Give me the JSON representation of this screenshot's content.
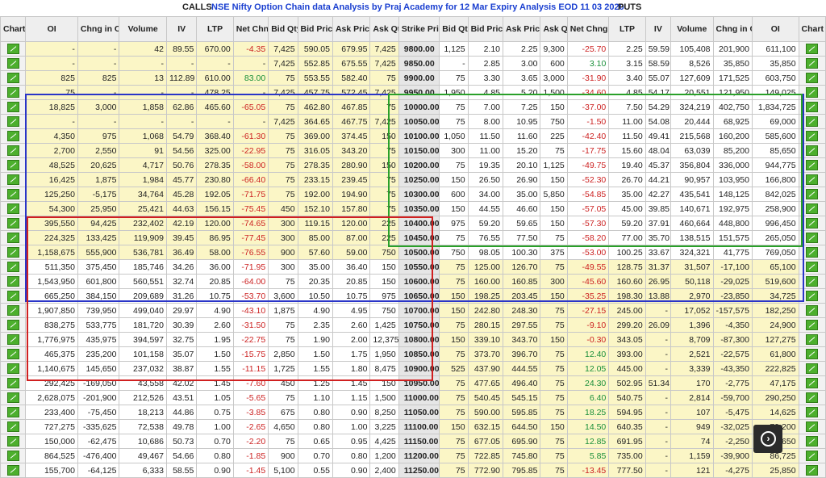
{
  "header": {
    "calls_label": "CALLS",
    "title": "NSE Nifty Option Chain data Analysis by Praj Academy for 12 Mar Expiry Analysis EOD 11 03 2020",
    "puts_label": "PUTS"
  },
  "columns": [
    "Chart",
    "OI",
    "Chng in OI",
    "Volume",
    "IV",
    "LTP",
    "Net Chng",
    "Bid Qty",
    "Bid Price",
    "Ask Price",
    "Ask Qty",
    "Strike Price",
    "Bid Qty",
    "Bid Price",
    "Ask Price",
    "Ask Qty",
    "Net Chng",
    "LTP",
    "IV",
    "Volume",
    "Chng in OI",
    "OI",
    "Chart"
  ],
  "colors": {
    "itm": "#fbf6c6",
    "otm": "#ffffff",
    "blue_box": "#2a35c8",
    "red_box": "#d02020",
    "green_box": "#2aa02a",
    "title": "#1a3fd0"
  },
  "icons": {
    "chart": "chart-icon",
    "next": "next-arrow-icon"
  },
  "rows": [
    [
      "-",
      "-",
      "42",
      "89.55",
      "670.00",
      "-4.35",
      "7,425",
      "590.05",
      "679.95",
      "7,425",
      "9800.00",
      "1,125",
      "2.10",
      "2.25",
      "9,300",
      "-25.70",
      "2.25",
      "59.59",
      "105,408",
      "201,900",
      "611,100"
    ],
    [
      "-",
      "-",
      "-",
      "-",
      "-",
      "-",
      "7,425",
      "552.85",
      "675.55",
      "7,425",
      "9850.00",
      "-",
      "2.85",
      "3.00",
      "600",
      "3.10",
      "3.15",
      "58.59",
      "8,526",
      "35,850",
      "35,850"
    ],
    [
      "825",
      "825",
      "13",
      "112.89",
      "610.00",
      "83.00",
      "75",
      "553.55",
      "582.40",
      "75",
      "9900.00",
      "75",
      "3.30",
      "3.65",
      "3,000",
      "-31.90",
      "3.40",
      "55.07",
      "127,609",
      "171,525",
      "603,750"
    ],
    [
      "75",
      "-",
      "-",
      "-",
      "478.25",
      "-",
      "7,425",
      "457.75",
      "572.45",
      "7,425",
      "9950.00",
      "1,950",
      "4.85",
      "5.20",
      "1,500",
      "-34.60",
      "4.85",
      "54.17",
      "20,551",
      "121,950",
      "149,025"
    ],
    [
      "18,825",
      "3,000",
      "1,858",
      "62.86",
      "465.60",
      "-65.05",
      "75",
      "462.80",
      "467.85",
      "75",
      "10000.00",
      "75",
      "7.00",
      "7.25",
      "150",
      "-37.00",
      "7.50",
      "54.29",
      "324,219",
      "402,750",
      "1,834,725"
    ],
    [
      "-",
      "-",
      "-",
      "-",
      "-",
      "-",
      "7,425",
      "364.65",
      "467.75",
      "7,425",
      "10050.00",
      "75",
      "8.00",
      "10.95",
      "750",
      "-1.50",
      "11.00",
      "54.08",
      "20,444",
      "68,925",
      "69,000"
    ],
    [
      "4,350",
      "975",
      "1,068",
      "54.79",
      "368.40",
      "-61.30",
      "75",
      "369.00",
      "374.45",
      "150",
      "10100.00",
      "1,050",
      "11.50",
      "11.60",
      "225",
      "-42.40",
      "11.50",
      "49.41",
      "215,568",
      "160,200",
      "585,600"
    ],
    [
      "2,700",
      "2,550",
      "91",
      "54.56",
      "325.00",
      "-22.95",
      "75",
      "316.05",
      "343.20",
      "75",
      "10150.00",
      "300",
      "11.00",
      "15.20",
      "75",
      "-17.75",
      "15.60",
      "48.04",
      "63,039",
      "85,200",
      "85,650"
    ],
    [
      "48,525",
      "20,625",
      "4,717",
      "50.76",
      "278.35",
      "-58.00",
      "75",
      "278.35",
      "280.90",
      "150",
      "10200.00",
      "75",
      "19.35",
      "20.10",
      "1,125",
      "-49.75",
      "19.40",
      "45.37",
      "356,804",
      "336,000",
      "944,775"
    ],
    [
      "16,425",
      "1,875",
      "1,984",
      "45.77",
      "230.80",
      "-66.40",
      "75",
      "233.15",
      "239.45",
      "75",
      "10250.00",
      "150",
      "26.50",
      "26.90",
      "150",
      "-52.30",
      "26.70",
      "44.21",
      "90,957",
      "103,950",
      "166,800"
    ],
    [
      "125,250",
      "-5,175",
      "34,764",
      "45.28",
      "192.05",
      "-71.75",
      "75",
      "192.00",
      "194.90",
      "75",
      "10300.00",
      "600",
      "34.00",
      "35.00",
      "5,850",
      "-54.85",
      "35.00",
      "42.27",
      "435,541",
      "148,125",
      "842,025"
    ],
    [
      "54,300",
      "25,950",
      "25,421",
      "44.63",
      "156.15",
      "-75.45",
      "450",
      "152.10",
      "157.80",
      "75",
      "10350.00",
      "150",
      "44.55",
      "46.60",
      "150",
      "-57.05",
      "45.00",
      "39.85",
      "140,671",
      "192,975",
      "258,900"
    ],
    [
      "395,550",
      "94,425",
      "232,402",
      "42.19",
      "120.00",
      "-74.65",
      "300",
      "119.15",
      "120.00",
      "225",
      "10400.00",
      "975",
      "59.20",
      "59.65",
      "150",
      "-57.30",
      "59.20",
      "37.91",
      "460,664",
      "448,800",
      "996,450"
    ],
    [
      "224,325",
      "133,425",
      "119,909",
      "39.45",
      "86.95",
      "-77.45",
      "300",
      "85.00",
      "87.00",
      "225",
      "10450.00",
      "75",
      "76.55",
      "77.50",
      "75",
      "-58.20",
      "77.00",
      "35.70",
      "138,515",
      "151,575",
      "265,050"
    ],
    [
      "1,158,675",
      "555,900",
      "536,781",
      "36.49",
      "58.00",
      "-76.55",
      "900",
      "57.60",
      "59.00",
      "750",
      "10500.00",
      "750",
      "98.05",
      "100.30",
      "375",
      "-53.00",
      "100.25",
      "33.67",
      "324,321",
      "41,775",
      "769,050"
    ],
    [
      "511,350",
      "375,450",
      "185,746",
      "34.26",
      "36.00",
      "-71.95",
      "300",
      "35.00",
      "36.40",
      "150",
      "10550.00",
      "75",
      "125.00",
      "126.70",
      "75",
      "-49.55",
      "128.75",
      "31.37",
      "31,507",
      "-17,100",
      "65,100"
    ],
    [
      "1,543,950",
      "601,800",
      "560,551",
      "32.74",
      "20.85",
      "-64.00",
      "75",
      "20.35",
      "20.85",
      "150",
      "10600.00",
      "75",
      "160.00",
      "160.85",
      "300",
      "-45.60",
      "160.60",
      "26.95",
      "50,118",
      "-29,025",
      "519,600"
    ],
    [
      "665,250",
      "384,150",
      "209,689",
      "31.26",
      "10.75",
      "-53.70",
      "3,600",
      "10.50",
      "10.75",
      "975",
      "10650.00",
      "150",
      "198.25",
      "203.45",
      "150",
      "-35.25",
      "198.30",
      "13.88",
      "2,970",
      "-23,850",
      "34,725"
    ],
    [
      "1,907,850",
      "739,950",
      "499,040",
      "29.97",
      "4.90",
      "-43.10",
      "1,875",
      "4.90",
      "4.95",
      "750",
      "10700.00",
      "150",
      "242.80",
      "248.30",
      "75",
      "-27.15",
      "245.00",
      "-",
      "17,052",
      "-157,575",
      "182,250"
    ],
    [
      "838,275",
      "533,775",
      "181,720",
      "30.39",
      "2.60",
      "-31.50",
      "75",
      "2.35",
      "2.60",
      "1,425",
      "10750.00",
      "75",
      "280.15",
      "297.55",
      "75",
      "-9.10",
      "299.20",
      "26.09",
      "1,396",
      "-4,350",
      "24,900"
    ],
    [
      "1,776,975",
      "435,975",
      "394,597",
      "32.75",
      "1.95",
      "-22.75",
      "75",
      "1.90",
      "2.00",
      "12,375",
      "10800.00",
      "150",
      "339.10",
      "343.70",
      "150",
      "-0.30",
      "343.05",
      "-",
      "8,709",
      "-87,300",
      "127,275"
    ],
    [
      "465,375",
      "235,200",
      "101,158",
      "35.07",
      "1.50",
      "-15.75",
      "2,850",
      "1.50",
      "1.75",
      "1,950",
      "10850.00",
      "75",
      "373.70",
      "396.70",
      "75",
      "12.40",
      "393.00",
      "-",
      "2,521",
      "-22,575",
      "61,800"
    ],
    [
      "1,140,675",
      "145,650",
      "237,032",
      "38.87",
      "1.55",
      "-11.15",
      "1,725",
      "1.55",
      "1.80",
      "8,475",
      "10900.00",
      "525",
      "437.90",
      "444.55",
      "75",
      "12.05",
      "445.00",
      "-",
      "3,339",
      "-43,350",
      "222,825"
    ],
    [
      "292,425",
      "-169,050",
      "43,558",
      "42.02",
      "1.45",
      "-7.60",
      "450",
      "1.25",
      "1.45",
      "150",
      "10950.00",
      "75",
      "477.65",
      "496.40",
      "75",
      "24.30",
      "502.95",
      "51.34",
      "170",
      "-2,775",
      "47,175"
    ],
    [
      "2,628,075",
      "-201,900",
      "212,526",
      "43.51",
      "1.05",
      "-5.65",
      "75",
      "1.10",
      "1.15",
      "1,500",
      "11000.00",
      "75",
      "540.45",
      "545.15",
      "75",
      "6.40",
      "540.75",
      "-",
      "2,814",
      "-59,700",
      "290,250"
    ],
    [
      "233,400",
      "-75,450",
      "18,213",
      "44.86",
      "0.75",
      "-3.85",
      "675",
      "0.80",
      "0.90",
      "8,250",
      "11050.00",
      "75",
      "590.00",
      "595.85",
      "75",
      "18.25",
      "594.95",
      "-",
      "107",
      "-5,475",
      "14,625"
    ],
    [
      "727,275",
      "-335,625",
      "72,538",
      "49.78",
      "1.00",
      "-2.65",
      "4,650",
      "0.80",
      "1.00",
      "3,225",
      "11100.00",
      "150",
      "632.15",
      "644.50",
      "150",
      "14.50",
      "640.35",
      "-",
      "949",
      "-32,025",
      "79,200"
    ],
    [
      "150,000",
      "-62,475",
      "10,686",
      "50.73",
      "0.70",
      "-2.20",
      "75",
      "0.65",
      "0.95",
      "4,425",
      "11150.00",
      "75",
      "677.05",
      "695.90",
      "75",
      "12.85",
      "691.95",
      "-",
      "74",
      "-2,250",
      "16,650"
    ],
    [
      "864,525",
      "-476,400",
      "49,467",
      "54.66",
      "0.80",
      "-1.85",
      "900",
      "0.70",
      "0.80",
      "1,200",
      "11200.00",
      "75",
      "722.85",
      "745.80",
      "75",
      "5.85",
      "735.00",
      "-",
      "1,159",
      "-39,900",
      "86,725"
    ],
    [
      "155,700",
      "-64,125",
      "6,333",
      "58.55",
      "0.90",
      "-1.45",
      "5,100",
      "0.55",
      "0.90",
      "2,400",
      "11250.00",
      "75",
      "772.90",
      "795.85",
      "75",
      "-13.45",
      "777.50",
      "-",
      "121",
      "-4,275",
      "25,850"
    ]
  ],
  "itm_calls_until_row": 14,
  "itm_puts_from_row": 15
}
